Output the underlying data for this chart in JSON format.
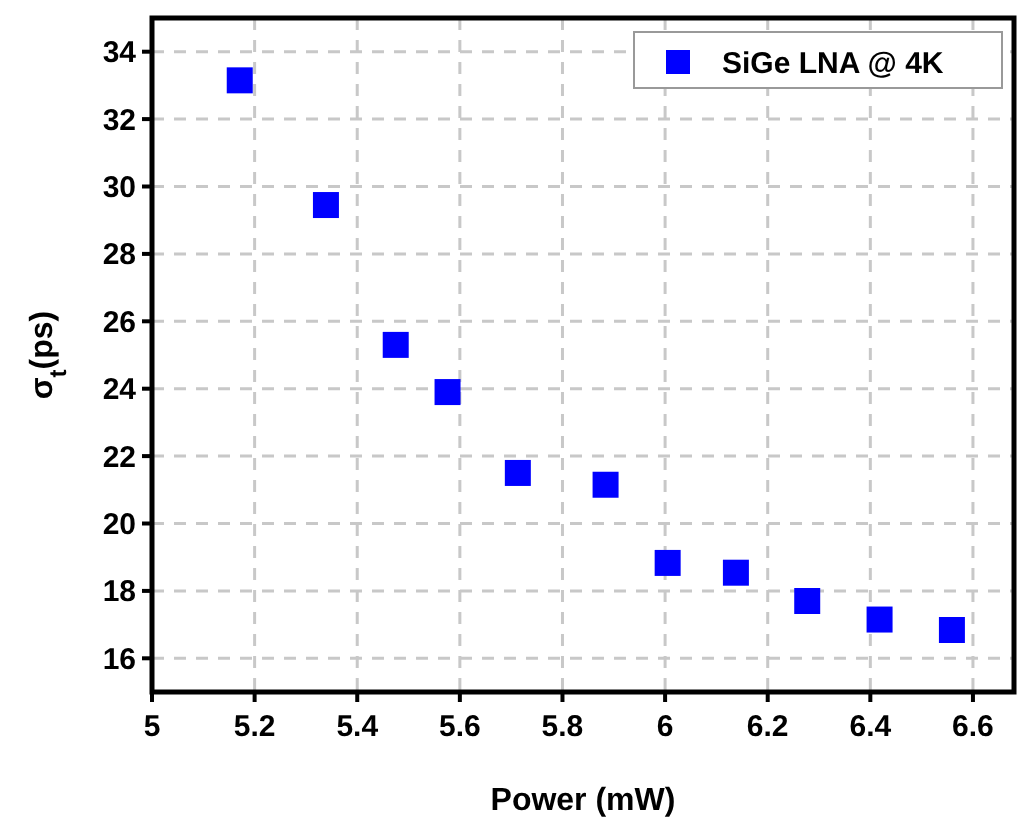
{
  "chart_data": {
    "type": "scatter",
    "xlabel": "Power (mW)",
    "ylabel": "σ$_{t}$(ps)",
    "x": [
      5.171,
      5.339,
      5.475,
      5.576,
      5.713,
      5.884,
      6.005,
      6.138,
      6.277,
      6.418,
      6.559
    ],
    "series": [
      {
        "name": "SiGe LNA @ 4K",
        "color": "#0000ff",
        "values": [
          33.15,
          29.45,
          25.3,
          23.9,
          21.5,
          21.15,
          18.83,
          18.54,
          17.7,
          17.15,
          16.84
        ]
      }
    ],
    "xlim": [
      5,
      6.68
    ],
    "xticks": [
      5,
      5.2,
      5.4,
      5.6,
      5.8,
      6,
      6.2,
      6.4,
      6.6
    ],
    "ylim": [
      15,
      35
    ],
    "yticks": [
      16,
      18,
      20,
      22,
      24,
      26,
      28,
      30,
      32,
      34
    ],
    "grid": true,
    "legend": "top right",
    "marker": "square"
  }
}
